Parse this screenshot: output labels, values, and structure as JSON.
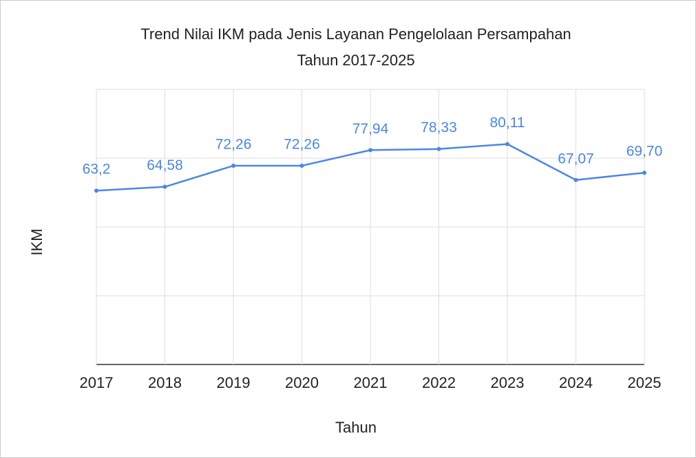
{
  "chart_data": {
    "type": "line",
    "title": [
      "Trend Nilai IKM pada Jenis Layanan Pengelolaan Persampahan",
      "Tahun 2017-2025"
    ],
    "x_label": "Tahun",
    "y_label": "IKM",
    "categories": [
      "2017",
      "2018",
      "2019",
      "2020",
      "2021",
      "2022",
      "2023",
      "2024",
      "2025"
    ],
    "series": [
      {
        "name": "IKM",
        "color": "#4a86e8",
        "values": [
          63.2,
          64.58,
          72.26,
          72.26,
          77.94,
          78.33,
          80.11,
          67.07,
          69.7
        ],
        "value_labels": [
          "63,2",
          "64,58",
          "72,26",
          "72,26",
          "77,94",
          "78,33",
          "80,11",
          "67,07",
          "69,70"
        ]
      }
    ],
    "ylim": [
      0,
      100
    ],
    "yticks": [
      0,
      25,
      50,
      75,
      100
    ],
    "grid": true
  }
}
